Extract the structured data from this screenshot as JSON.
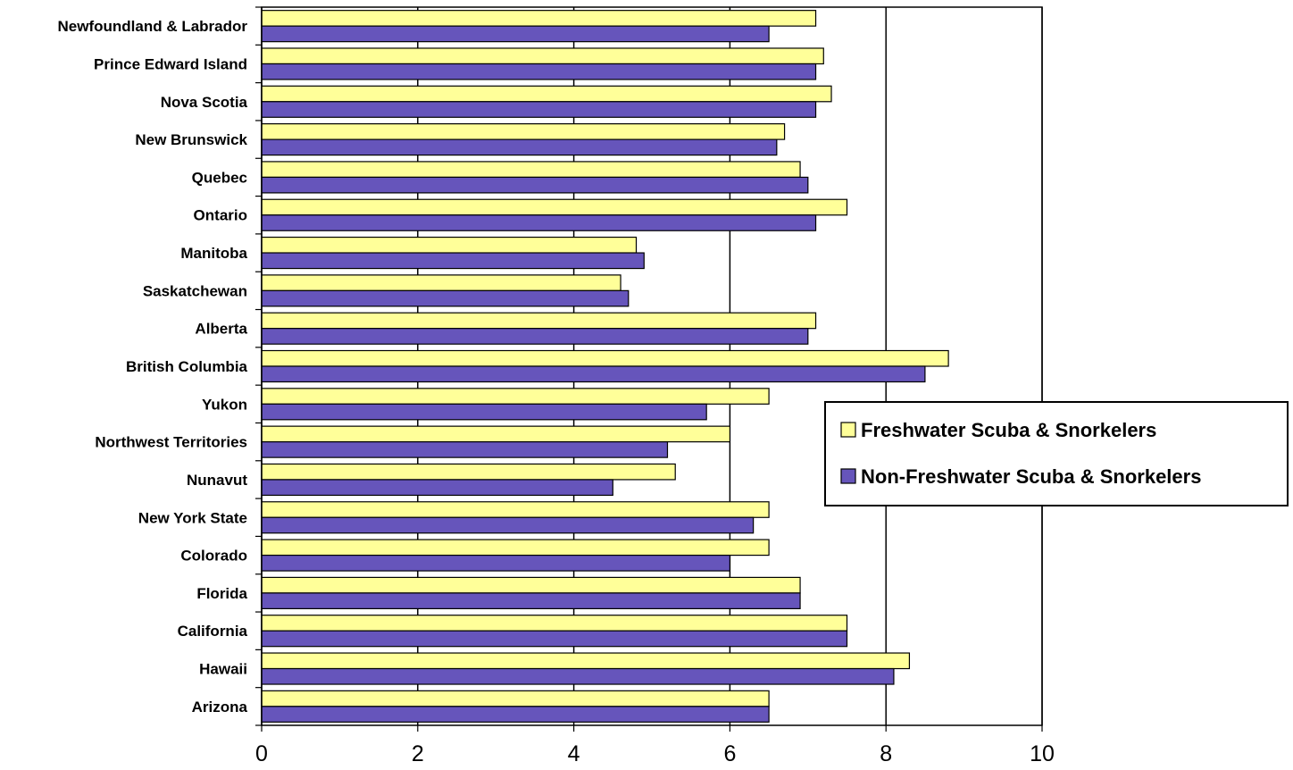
{
  "chart_data": {
    "type": "bar",
    "orientation": "horizontal",
    "categories": [
      "Newfoundland & Labrador",
      "Prince Edward Island",
      "Nova Scotia",
      "New Brunswick",
      "Quebec",
      "Ontario",
      "Manitoba",
      "Saskatchewan",
      "Alberta",
      "British Columbia",
      "Yukon",
      "Northwest Territories",
      "Nunavut",
      "New York State",
      "Colorado",
      "Florida",
      "California",
      "Hawaii",
      "Arizona"
    ],
    "series": [
      {
        "name": "Freshwater Scuba & Snorkelers",
        "color": "#FFFF99",
        "values": [
          7.1,
          7.2,
          7.3,
          6.7,
          6.9,
          7.5,
          4.8,
          4.6,
          7.1,
          8.8,
          6.5,
          6.0,
          5.3,
          6.5,
          6.5,
          6.9,
          7.5,
          8.3,
          6.5
        ]
      },
      {
        "name": "Non-Freshwater Scuba & Snorkelers",
        "color": "#6655BB",
        "values": [
          6.5,
          7.1,
          7.1,
          6.6,
          7.0,
          7.1,
          4.9,
          4.7,
          7.0,
          8.5,
          5.7,
          5.2,
          4.5,
          6.3,
          6.0,
          6.9,
          7.5,
          8.1,
          6.5
        ]
      }
    ],
    "xlim": [
      0,
      10
    ],
    "xticks": [
      "0",
      "2",
      "4",
      "6",
      "8",
      "10"
    ],
    "xlabel": "",
    "ylabel": "",
    "title": "",
    "grid": "vertical major gridlines",
    "legend_position": "right"
  }
}
